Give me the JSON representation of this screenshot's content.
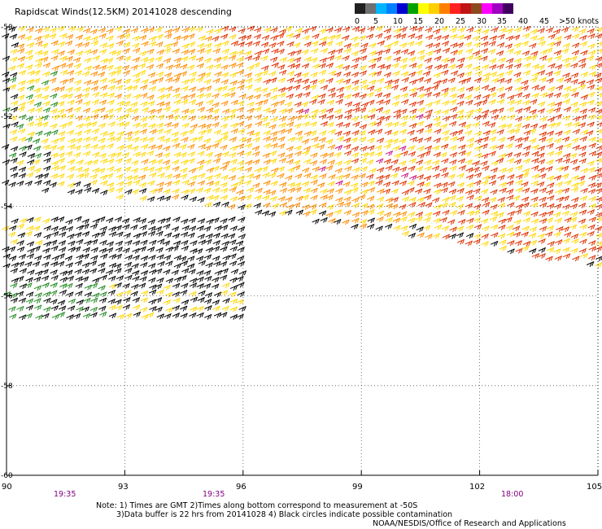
{
  "title": "Rapidscat Winds(12.5KM) 20141028 descending",
  "legend": {
    "labels": [
      "0",
      "5",
      "10",
      "15",
      "20",
      "25",
      "30",
      "35",
      "40",
      "45",
      ">50 knots"
    ],
    "colors": [
      "#202020",
      "#707070",
      "#00b4ff",
      "#0080ff",
      "#0000d0",
      "#00a000",
      "#ffff00",
      "#ffd000",
      "#ff8000",
      "#ff2020",
      "#c01414",
      "#8c4a1e",
      "#ff00ff",
      "#a000c0",
      "#400060"
    ]
  },
  "map": {
    "lat_labels": [
      "-50",
      "-52",
      "-54",
      "-56",
      "-58",
      "-60"
    ],
    "lon_labels": [
      "90",
      "93",
      "96",
      "99",
      "102",
      "105"
    ],
    "lat_range": [
      -60,
      -50
    ],
    "lon_range": [
      90,
      105
    ],
    "pass_times": [
      "19:35",
      "19:35",
      "18:00"
    ],
    "grid": true,
    "barb_colors": {
      "black": "#000000",
      "green": "#228b22",
      "yellow": "#ffd700",
      "orange": "#ff8c00",
      "red": "#e03000",
      "magenta": "#c71585"
    }
  },
  "notes": {
    "line1": "Note: 1) Times are GMT 2)Times along bottom correspond to measurement at -50S",
    "line2": "3)Data buffer is 22 hrs from 20141028 4) Black circles indicate possible contamination",
    "line3": "NOAA/NESDIS/Office of Research and Applications"
  }
}
